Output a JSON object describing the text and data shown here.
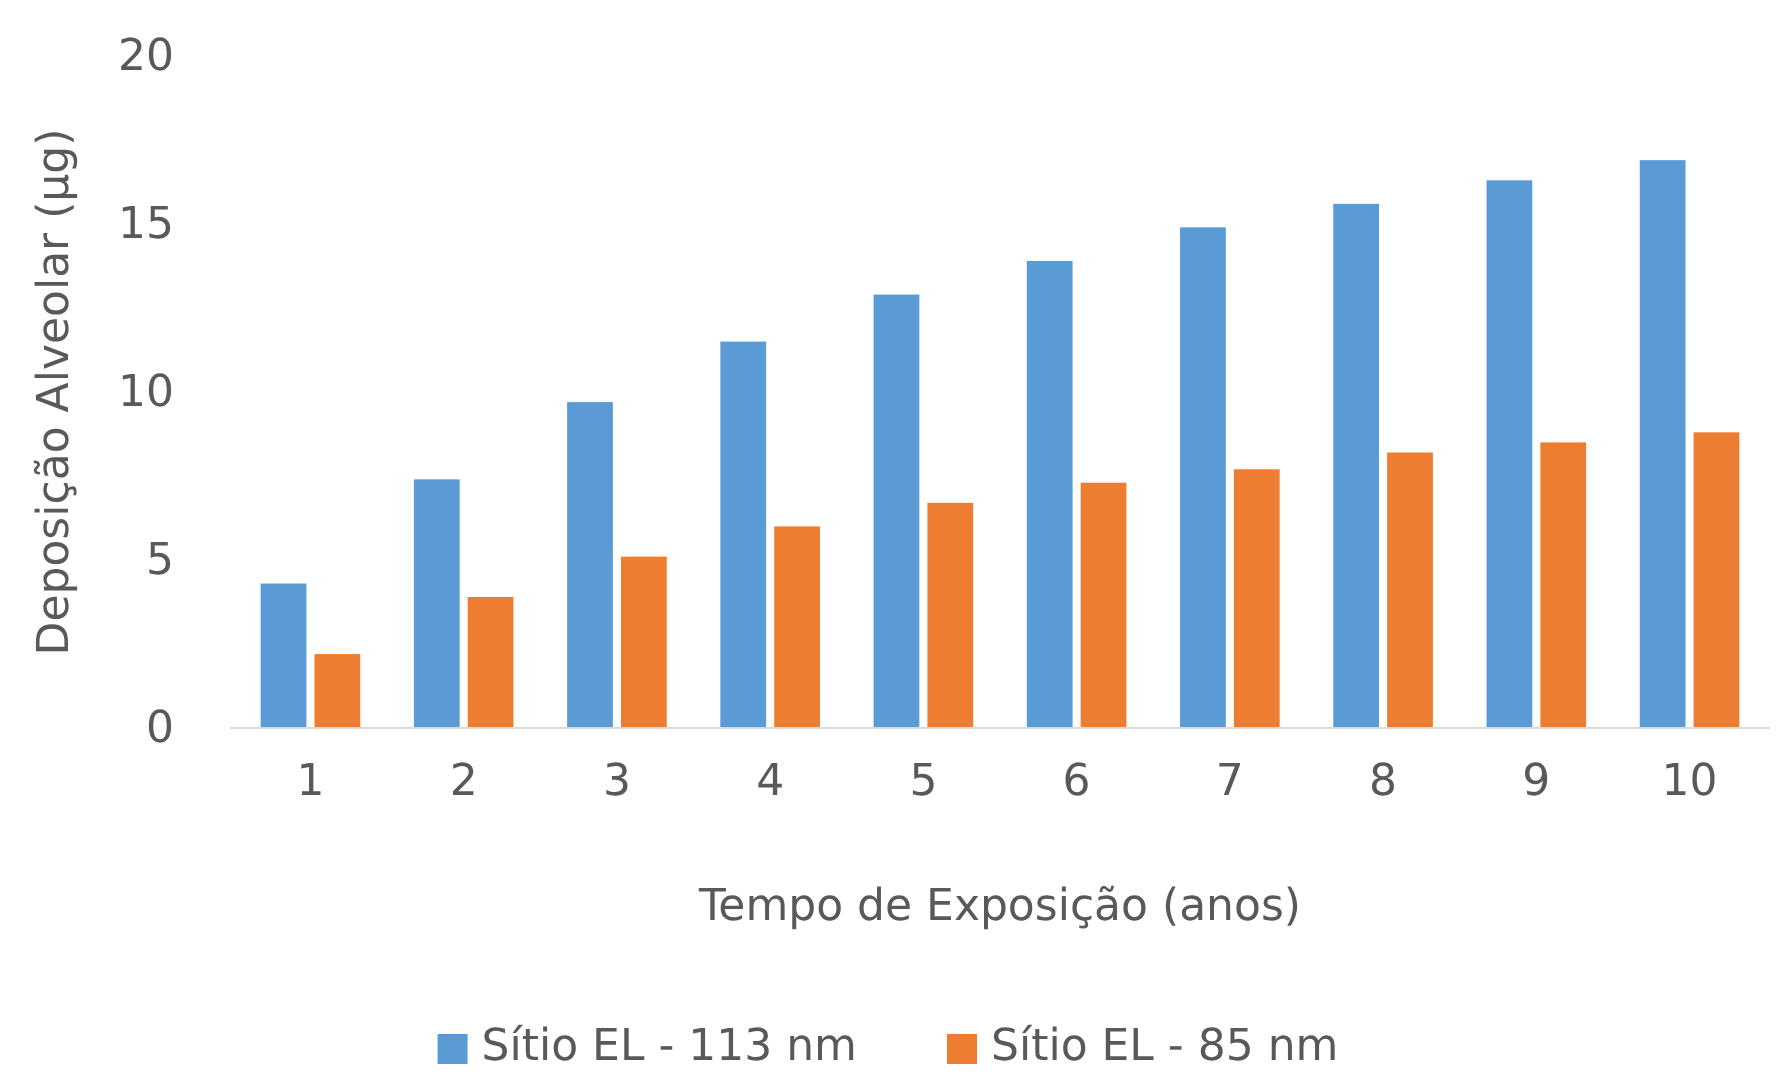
{
  "chart_data": {
    "type": "bar",
    "xlabel": "Tempo de Exposição (anos)",
    "ylabel": "Deposição Alveolar (µg)",
    "categories": [
      "1",
      "2",
      "3",
      "4",
      "5",
      "6",
      "7",
      "8",
      "9",
      "10"
    ],
    "series": [
      {
        "name": "Sítio EL - 113 nm",
        "color": "#5b9bd5",
        "values": [
          4.3,
          7.4,
          9.7,
          11.5,
          12.9,
          13.9,
          14.9,
          15.6,
          16.3,
          16.9
        ]
      },
      {
        "name": "Sítio EL - 85 nm",
        "color": "#ed7d31",
        "values": [
          2.2,
          3.9,
          5.1,
          6.0,
          6.7,
          7.3,
          7.7,
          8.2,
          8.5,
          8.8
        ]
      }
    ],
    "ylim": [
      0,
      20
    ],
    "yticks": [
      0,
      5,
      10,
      15,
      20
    ],
    "grid": false,
    "legend": "bottom"
  }
}
